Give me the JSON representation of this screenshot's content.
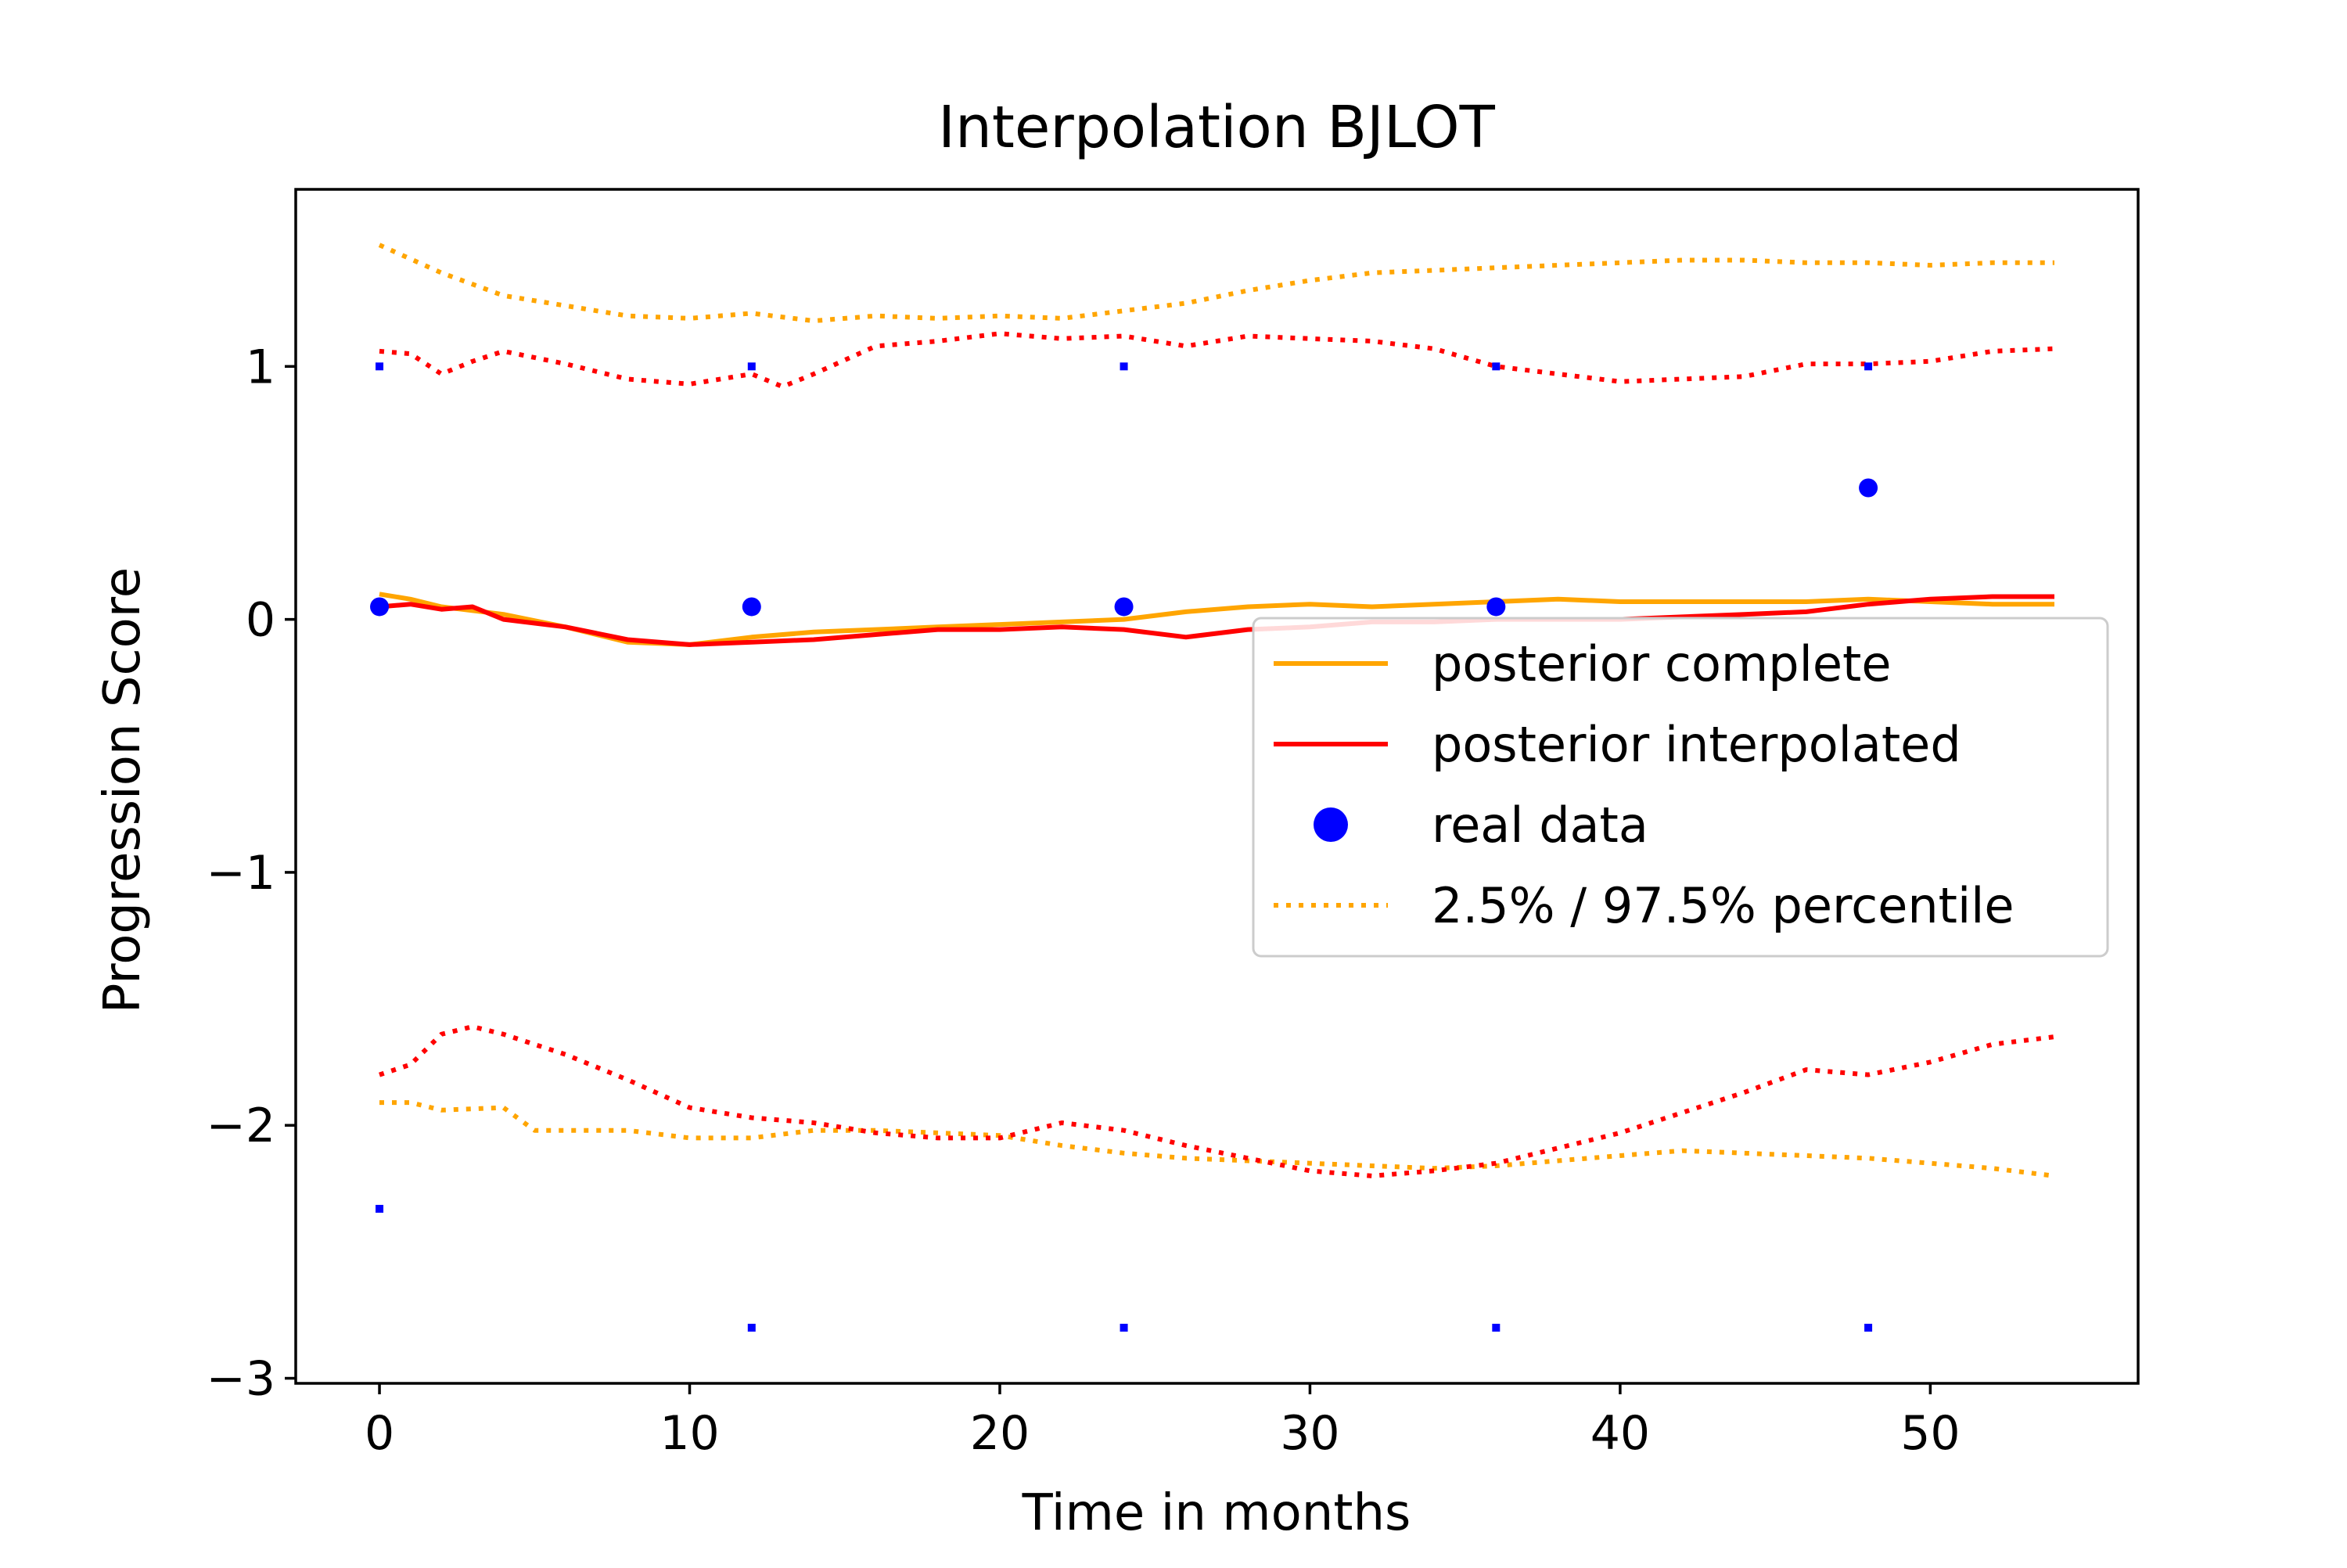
{
  "chart_data": {
    "type": "line",
    "title": "Interpolation BJLOT",
    "xlabel": "Time in months",
    "ylabel": "Progression Score",
    "xlim": [
      -2.7,
      56.7
    ],
    "ylim": [
      -3.02,
      1.7
    ],
    "xticks": [
      0,
      10,
      20,
      30,
      40,
      50
    ],
    "yticks": [
      -3,
      -2,
      -1,
      0,
      1
    ],
    "xtick_labels": [
      "0",
      "10",
      "20",
      "30",
      "40",
      "50"
    ],
    "ytick_labels": [
      "−3",
      "−2",
      "−1",
      "0",
      "1"
    ],
    "grid": false,
    "legend_position": "center-right",
    "colors": {
      "complete": "#FFA500",
      "interpolated": "#FF0000",
      "real": "#0000FF"
    },
    "legend": [
      {
        "label": "posterior complete",
        "style": "line",
        "color": "#FFA500"
      },
      {
        "label": "posterior interpolated",
        "style": "line",
        "color": "#FF0000"
      },
      {
        "label": "real data",
        "style": "marker",
        "color": "#0000FF"
      },
      {
        "label": "2.5% / 97.5% percentile",
        "style": "dotted",
        "color": "#FFA500"
      }
    ],
    "series": [
      {
        "key": "complete_mean",
        "style": "solid",
        "color": "#FFA500",
        "points": [
          [
            0,
            0.1
          ],
          [
            1,
            0.08
          ],
          [
            2,
            0.05
          ],
          [
            4,
            0.02
          ],
          [
            6,
            -0.03
          ],
          [
            8,
            -0.09
          ],
          [
            10,
            -0.1
          ],
          [
            12,
            -0.07
          ],
          [
            14,
            -0.05
          ],
          [
            16,
            -0.04
          ],
          [
            18,
            -0.03
          ],
          [
            20,
            -0.02
          ],
          [
            22,
            -0.01
          ],
          [
            24,
            0.0
          ],
          [
            26,
            0.03
          ],
          [
            28,
            0.05
          ],
          [
            30,
            0.06
          ],
          [
            32,
            0.05
          ],
          [
            34,
            0.06
          ],
          [
            36,
            0.07
          ],
          [
            38,
            0.08
          ],
          [
            40,
            0.07
          ],
          [
            42,
            0.07
          ],
          [
            44,
            0.07
          ],
          [
            46,
            0.07
          ],
          [
            48,
            0.08
          ],
          [
            50,
            0.07
          ],
          [
            52,
            0.06
          ],
          [
            54,
            0.06
          ]
        ]
      },
      {
        "key": "interpolated_mean",
        "style": "solid",
        "color": "#FF0000",
        "points": [
          [
            0,
            0.05
          ],
          [
            1,
            0.06
          ],
          [
            2,
            0.04
          ],
          [
            3,
            0.05
          ],
          [
            4,
            0.0
          ],
          [
            6,
            -0.03
          ],
          [
            8,
            -0.08
          ],
          [
            10,
            -0.1
          ],
          [
            12,
            -0.09
          ],
          [
            14,
            -0.08
          ],
          [
            16,
            -0.06
          ],
          [
            18,
            -0.04
          ],
          [
            20,
            -0.04
          ],
          [
            22,
            -0.03
          ],
          [
            24,
            -0.04
          ],
          [
            26,
            -0.07
          ],
          [
            28,
            -0.04
          ],
          [
            30,
            -0.03
          ],
          [
            32,
            -0.01
          ],
          [
            34,
            -0.01
          ],
          [
            36,
            0.0
          ],
          [
            38,
            0.0
          ],
          [
            40,
            0.0
          ],
          [
            42,
            0.01
          ],
          [
            44,
            0.02
          ],
          [
            46,
            0.03
          ],
          [
            48,
            0.06
          ],
          [
            50,
            0.08
          ],
          [
            52,
            0.09
          ],
          [
            54,
            0.09
          ]
        ]
      },
      {
        "key": "complete_upper",
        "style": "dotted",
        "color": "#FFA500",
        "points": [
          [
            0,
            1.48
          ],
          [
            2,
            1.37
          ],
          [
            4,
            1.28
          ],
          [
            6,
            1.24
          ],
          [
            8,
            1.2
          ],
          [
            10,
            1.19
          ],
          [
            12,
            1.21
          ],
          [
            14,
            1.18
          ],
          [
            16,
            1.2
          ],
          [
            18,
            1.19
          ],
          [
            20,
            1.2
          ],
          [
            22,
            1.19
          ],
          [
            24,
            1.22
          ],
          [
            26,
            1.25
          ],
          [
            28,
            1.3
          ],
          [
            30,
            1.34
          ],
          [
            32,
            1.37
          ],
          [
            34,
            1.38
          ],
          [
            36,
            1.39
          ],
          [
            38,
            1.4
          ],
          [
            40,
            1.41
          ],
          [
            42,
            1.42
          ],
          [
            44,
            1.42
          ],
          [
            46,
            1.41
          ],
          [
            48,
            1.41
          ],
          [
            50,
            1.4
          ],
          [
            52,
            1.41
          ],
          [
            54,
            1.41
          ]
        ]
      },
      {
        "key": "interpolated_upper",
        "style": "dotted",
        "color": "#FF0000",
        "points": [
          [
            0,
            1.06
          ],
          [
            1,
            1.05
          ],
          [
            2,
            0.97
          ],
          [
            3,
            1.02
          ],
          [
            4,
            1.06
          ],
          [
            6,
            1.01
          ],
          [
            8,
            0.95
          ],
          [
            10,
            0.93
          ],
          [
            12,
            0.97
          ],
          [
            13,
            0.92
          ],
          [
            14,
            0.97
          ],
          [
            16,
            1.08
          ],
          [
            18,
            1.1
          ],
          [
            20,
            1.13
          ],
          [
            22,
            1.11
          ],
          [
            24,
            1.12
          ],
          [
            26,
            1.08
          ],
          [
            28,
            1.12
          ],
          [
            30,
            1.11
          ],
          [
            32,
            1.1
          ],
          [
            34,
            1.07
          ],
          [
            36,
            1.0
          ],
          [
            38,
            0.97
          ],
          [
            40,
            0.94
          ],
          [
            42,
            0.95
          ],
          [
            44,
            0.96
          ],
          [
            46,
            1.01
          ],
          [
            48,
            1.01
          ],
          [
            50,
            1.02
          ],
          [
            52,
            1.06
          ],
          [
            54,
            1.07
          ]
        ]
      },
      {
        "key": "complete_lower",
        "style": "dotted",
        "color": "#FFA500",
        "points": [
          [
            0,
            -1.91
          ],
          [
            1,
            -1.91
          ],
          [
            2,
            -1.94
          ],
          [
            4,
            -1.93
          ],
          [
            5,
            -2.02
          ],
          [
            8,
            -2.02
          ],
          [
            10,
            -2.05
          ],
          [
            12,
            -2.05
          ],
          [
            14,
            -2.02
          ],
          [
            16,
            -2.02
          ],
          [
            18,
            -2.03
          ],
          [
            20,
            -2.04
          ],
          [
            22,
            -2.08
          ],
          [
            24,
            -2.11
          ],
          [
            26,
            -2.13
          ],
          [
            28,
            -2.14
          ],
          [
            30,
            -2.15
          ],
          [
            32,
            -2.16
          ],
          [
            34,
            -2.17
          ],
          [
            36,
            -2.16
          ],
          [
            38,
            -2.14
          ],
          [
            40,
            -2.12
          ],
          [
            42,
            -2.1
          ],
          [
            44,
            -2.11
          ],
          [
            46,
            -2.12
          ],
          [
            48,
            -2.13
          ],
          [
            50,
            -2.15
          ],
          [
            52,
            -2.17
          ],
          [
            54,
            -2.2
          ]
        ]
      },
      {
        "key": "interpolated_lower",
        "style": "dotted",
        "color": "#FF0000",
        "points": [
          [
            0,
            -1.8
          ],
          [
            1,
            -1.76
          ],
          [
            2,
            -1.64
          ],
          [
            3,
            -1.61
          ],
          [
            4,
            -1.64
          ],
          [
            5,
            -1.68
          ],
          [
            6,
            -1.72
          ],
          [
            8,
            -1.82
          ],
          [
            10,
            -1.93
          ],
          [
            12,
            -1.97
          ],
          [
            14,
            -1.99
          ],
          [
            16,
            -2.03
          ],
          [
            18,
            -2.05
          ],
          [
            20,
            -2.05
          ],
          [
            22,
            -1.99
          ],
          [
            24,
            -2.02
          ],
          [
            26,
            -2.08
          ],
          [
            28,
            -2.13
          ],
          [
            30,
            -2.18
          ],
          [
            32,
            -2.2
          ],
          [
            34,
            -2.18
          ],
          [
            36,
            -2.15
          ],
          [
            38,
            -2.09
          ],
          [
            40,
            -2.03
          ],
          [
            42,
            -1.95
          ],
          [
            44,
            -1.87
          ],
          [
            46,
            -1.78
          ],
          [
            48,
            -1.8
          ],
          [
            50,
            -1.75
          ],
          [
            52,
            -1.68
          ],
          [
            54,
            -1.65
          ]
        ]
      },
      {
        "key": "real_data_large",
        "style": "marker",
        "color": "#0000FF",
        "marker_size": "large",
        "points": [
          [
            0,
            0.05
          ],
          [
            12,
            0.05
          ],
          [
            24,
            0.05
          ],
          [
            36,
            0.05
          ],
          [
            48,
            0.52
          ]
        ]
      },
      {
        "key": "real_data_small",
        "style": "marker",
        "color": "#0000FF",
        "marker_size": "small",
        "points": [
          [
            0,
            1.0
          ],
          [
            12,
            1.0
          ],
          [
            24,
            1.0
          ],
          [
            36,
            1.0
          ],
          [
            48,
            1.0
          ],
          [
            0,
            -2.33
          ],
          [
            12,
            -2.8
          ],
          [
            24,
            -2.8
          ],
          [
            36,
            -2.8
          ],
          [
            48,
            -2.8
          ]
        ]
      }
    ]
  }
}
